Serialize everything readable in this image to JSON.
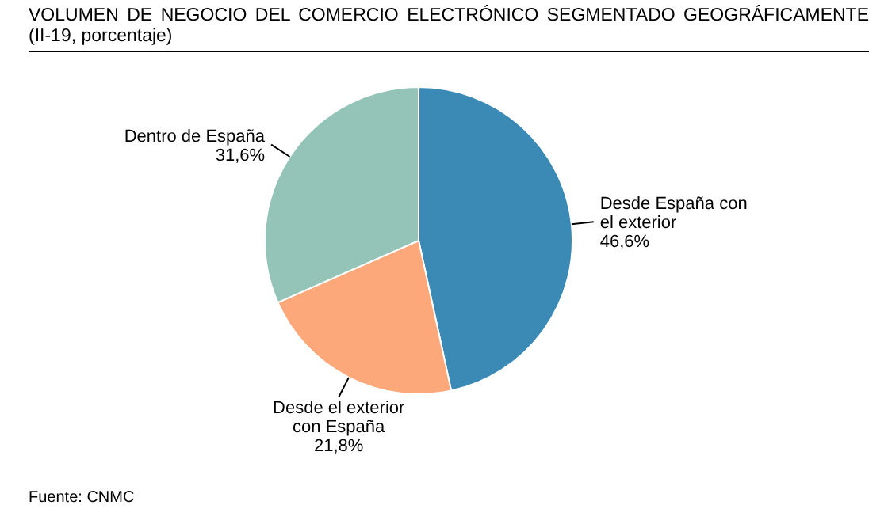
{
  "chart_data": {
    "type": "pie",
    "title": "VOLUMEN DE NEGOCIO DEL COMERCIO ELECTRÓNICO SEGMENTADO GEOGRÁFICAMENTE (II-19, porcentaje)",
    "categories": [
      "Desde España con el exterior",
      "Desde el exterior con España",
      "Dentro de España"
    ],
    "values": [
      46.6,
      21.8,
      31.6
    ],
    "colors": [
      "#3a8ab5",
      "#fca87a",
      "#93c4b7"
    ],
    "value_labels": [
      "46,6%",
      "21,8%",
      "31,6%"
    ],
    "annotations": [
      "Fuente: CNMC"
    ],
    "legend": false
  }
}
